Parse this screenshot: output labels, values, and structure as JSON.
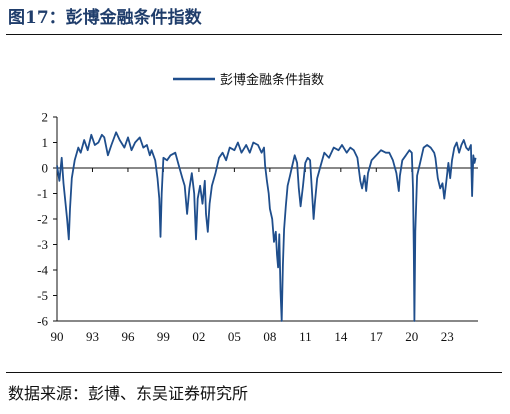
{
  "figure": {
    "title": "图17：彭博金融条件指数",
    "source": "数据来源：彭博、东吴证券研究所"
  },
  "chart_data": {
    "type": "line",
    "title": "",
    "xlabel": "",
    "ylabel": "",
    "ylim": [
      -6,
      2
    ],
    "xlim": [
      1990,
      2025.6
    ],
    "yticks": [
      "2",
      "1",
      "0",
      "-1",
      "-2",
      "-3",
      "-4",
      "-5",
      "-6"
    ],
    "xticks": [
      "90",
      "93",
      "96",
      "99",
      "02",
      "05",
      "08",
      "11",
      "14",
      "17",
      "20",
      "23"
    ],
    "legend": "top-center",
    "grid": false,
    "series": [
      {
        "name": "彭博金融条件指数",
        "color": "#1f4e8c",
        "x": [
          1990.0,
          1990.2,
          1990.4,
          1990.55,
          1990.7,
          1990.85,
          1991.0,
          1991.1,
          1991.25,
          1991.5,
          1991.8,
          1992.0,
          1992.3,
          1992.6,
          1992.9,
          1993.2,
          1993.5,
          1993.8,
          1994.0,
          1994.3,
          1994.6,
          1995.0,
          1995.3,
          1995.7,
          1996.0,
          1996.3,
          1996.6,
          1997.0,
          1997.3,
          1997.6,
          1997.85,
          1998.0,
          1998.3,
          1998.5,
          1998.65,
          1998.75,
          1998.85,
          1999.0,
          1999.3,
          1999.6,
          2000.0,
          2000.3,
          2000.6,
          2000.8,
          2001.0,
          2001.2,
          2001.4,
          2001.6,
          2001.75,
          2001.9,
          2002.1,
          2002.3,
          2002.5,
          2002.6,
          2002.75,
          2002.9,
          2003.1,
          2003.4,
          2003.7,
          2004.0,
          2004.3,
          2004.6,
          2005.0,
          2005.3,
          2005.6,
          2006.0,
          2006.3,
          2006.6,
          2007.0,
          2007.3,
          2007.5,
          2007.6,
          2007.75,
          2007.9,
          2008.0,
          2008.2,
          2008.35,
          2008.5,
          2008.6,
          2008.7,
          2008.8,
          2008.9,
          2009.0,
          2009.1,
          2009.2,
          2009.35,
          2009.5,
          2009.7,
          2009.9,
          2010.1,
          2010.3,
          2010.45,
          2010.6,
          2010.8,
          2011.0,
          2011.2,
          2011.4,
          2011.6,
          2011.7,
          2011.8,
          2012.0,
          2012.3,
          2012.6,
          2013.0,
          2013.4,
          2013.8,
          2014.1,
          2014.5,
          2014.8,
          2015.1,
          2015.4,
          2015.65,
          2015.8,
          2016.0,
          2016.15,
          2016.3,
          2016.6,
          2017.0,
          2017.4,
          2017.8,
          2018.1,
          2018.4,
          2018.7,
          2018.9,
          2019.0,
          2019.2,
          2019.5,
          2019.8,
          2020.0,
          2020.1,
          2020.17,
          2020.22,
          2020.3,
          2020.45,
          2020.7,
          2021.0,
          2021.3,
          2021.6,
          2021.9,
          2022.0,
          2022.2,
          2022.4,
          2022.6,
          2022.75,
          2022.9,
          2023.1,
          2023.25,
          2023.4,
          2023.6,
          2023.8,
          2024.0,
          2024.2,
          2024.4,
          2024.6,
          2024.8,
          2025.0,
          2025.1,
          2025.2,
          2025.3,
          2025.4
        ],
        "y": [
          0.1,
          -0.5,
          0.4,
          -0.6,
          -1.3,
          -2.0,
          -2.8,
          -1.6,
          -0.4,
          0.3,
          0.8,
          0.6,
          1.1,
          0.7,
          1.3,
          0.9,
          1.0,
          1.3,
          1.2,
          0.5,
          0.9,
          1.4,
          1.1,
          0.8,
          1.2,
          0.7,
          1.0,
          1.2,
          0.8,
          0.9,
          0.5,
          0.7,
          0.3,
          -0.4,
          -1.2,
          -2.7,
          -1.0,
          0.4,
          0.3,
          0.5,
          0.6,
          0.1,
          -0.4,
          -0.7,
          -1.8,
          -0.8,
          -0.2,
          -1.0,
          -2.8,
          -1.2,
          -0.7,
          -1.4,
          -0.5,
          -1.8,
          -2.5,
          -1.4,
          -0.7,
          -0.2,
          0.4,
          0.6,
          0.3,
          0.8,
          0.7,
          1.0,
          0.6,
          0.9,
          0.6,
          1.0,
          0.9,
          0.6,
          0.8,
          0.1,
          -0.5,
          -1.0,
          -1.6,
          -2.0,
          -2.9,
          -2.5,
          -3.4,
          -3.9,
          -2.6,
          -4.8,
          -6.0,
          -3.8,
          -2.4,
          -1.5,
          -0.7,
          -0.3,
          0.1,
          0.5,
          0.2,
          -0.8,
          -1.5,
          -0.7,
          0.2,
          0.4,
          0.3,
          -1.2,
          -2.0,
          -1.4,
          -0.4,
          0.1,
          0.6,
          0.4,
          0.8,
          0.7,
          0.9,
          0.6,
          0.8,
          0.7,
          0.4,
          -0.5,
          -0.8,
          -0.3,
          -0.9,
          -0.2,
          0.3,
          0.5,
          0.7,
          0.6,
          0.6,
          0.3,
          -0.2,
          -0.9,
          -0.3,
          0.3,
          0.5,
          0.7,
          0.6,
          -0.8,
          -3.2,
          -6.0,
          -2.5,
          -0.3,
          0.2,
          0.8,
          0.9,
          0.8,
          0.6,
          0.4,
          -0.4,
          -0.8,
          -0.6,
          -1.2,
          -0.6,
          0.2,
          -0.4,
          0.3,
          0.8,
          1.0,
          0.6,
          0.9,
          1.1,
          0.8,
          0.7,
          0.9,
          -1.1,
          0.5,
          0.2,
          0.4
        ]
      }
    ]
  }
}
